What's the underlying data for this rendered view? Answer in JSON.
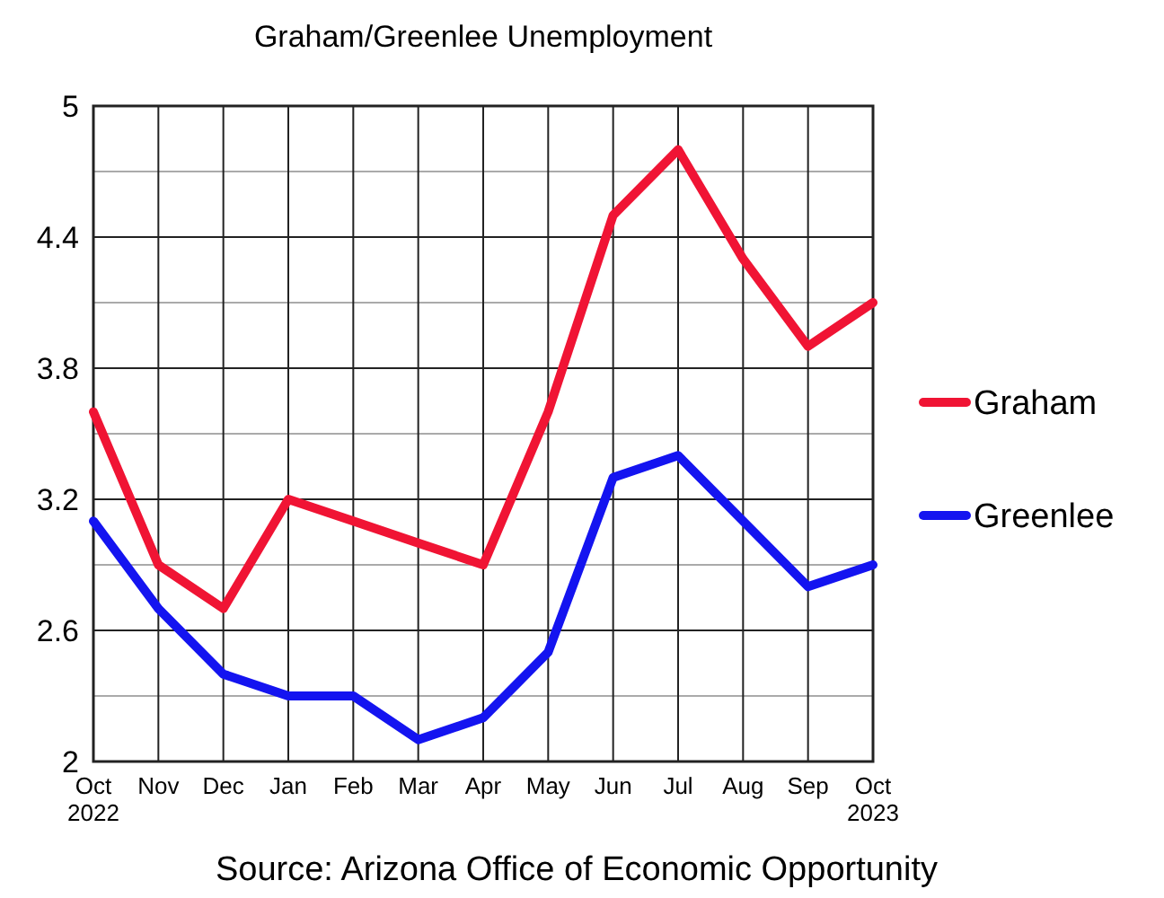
{
  "chart_data": {
    "type": "line",
    "title": "Graham/Greenlee Unemployment",
    "categories": [
      "Oct\n2022",
      "Nov",
      "Dec",
      "Jan",
      "Feb",
      "Mar",
      "Apr",
      "May",
      "Jun",
      "Jul",
      "Aug",
      "Sep",
      "Oct\n2023"
    ],
    "series": [
      {
        "name": "Graham",
        "color": "#f01434",
        "values": [
          3.6,
          2.9,
          2.7,
          3.2,
          3.1,
          3.0,
          2.9,
          3.6,
          4.5,
          4.8,
          4.3,
          3.9,
          4.1
        ]
      },
      {
        "name": "Greenlee",
        "color": "#1414f0",
        "values": [
          3.1,
          2.7,
          2.4,
          2.3,
          2.3,
          2.1,
          2.2,
          2.5,
          3.3,
          3.4,
          3.1,
          2.8,
          2.9
        ]
      }
    ],
    "ylim": [
      2,
      5
    ],
    "yticks": [
      2,
      {
        "value": 2.3,
        "label": null
      },
      2.6,
      {
        "value": 2.9,
        "label": null
      },
      3.2,
      {
        "value": 3.5,
        "label": null
      },
      3.8,
      {
        "value": 4.1,
        "label": null
      },
      4.4,
      {
        "value": 4.7,
        "label": null
      },
      5
    ],
    "grid": true,
    "legend": "right",
    "marker": "none",
    "line_style": "solid",
    "annotations": [
      "Source: Arizona Office of Economic Opportunity"
    ]
  }
}
